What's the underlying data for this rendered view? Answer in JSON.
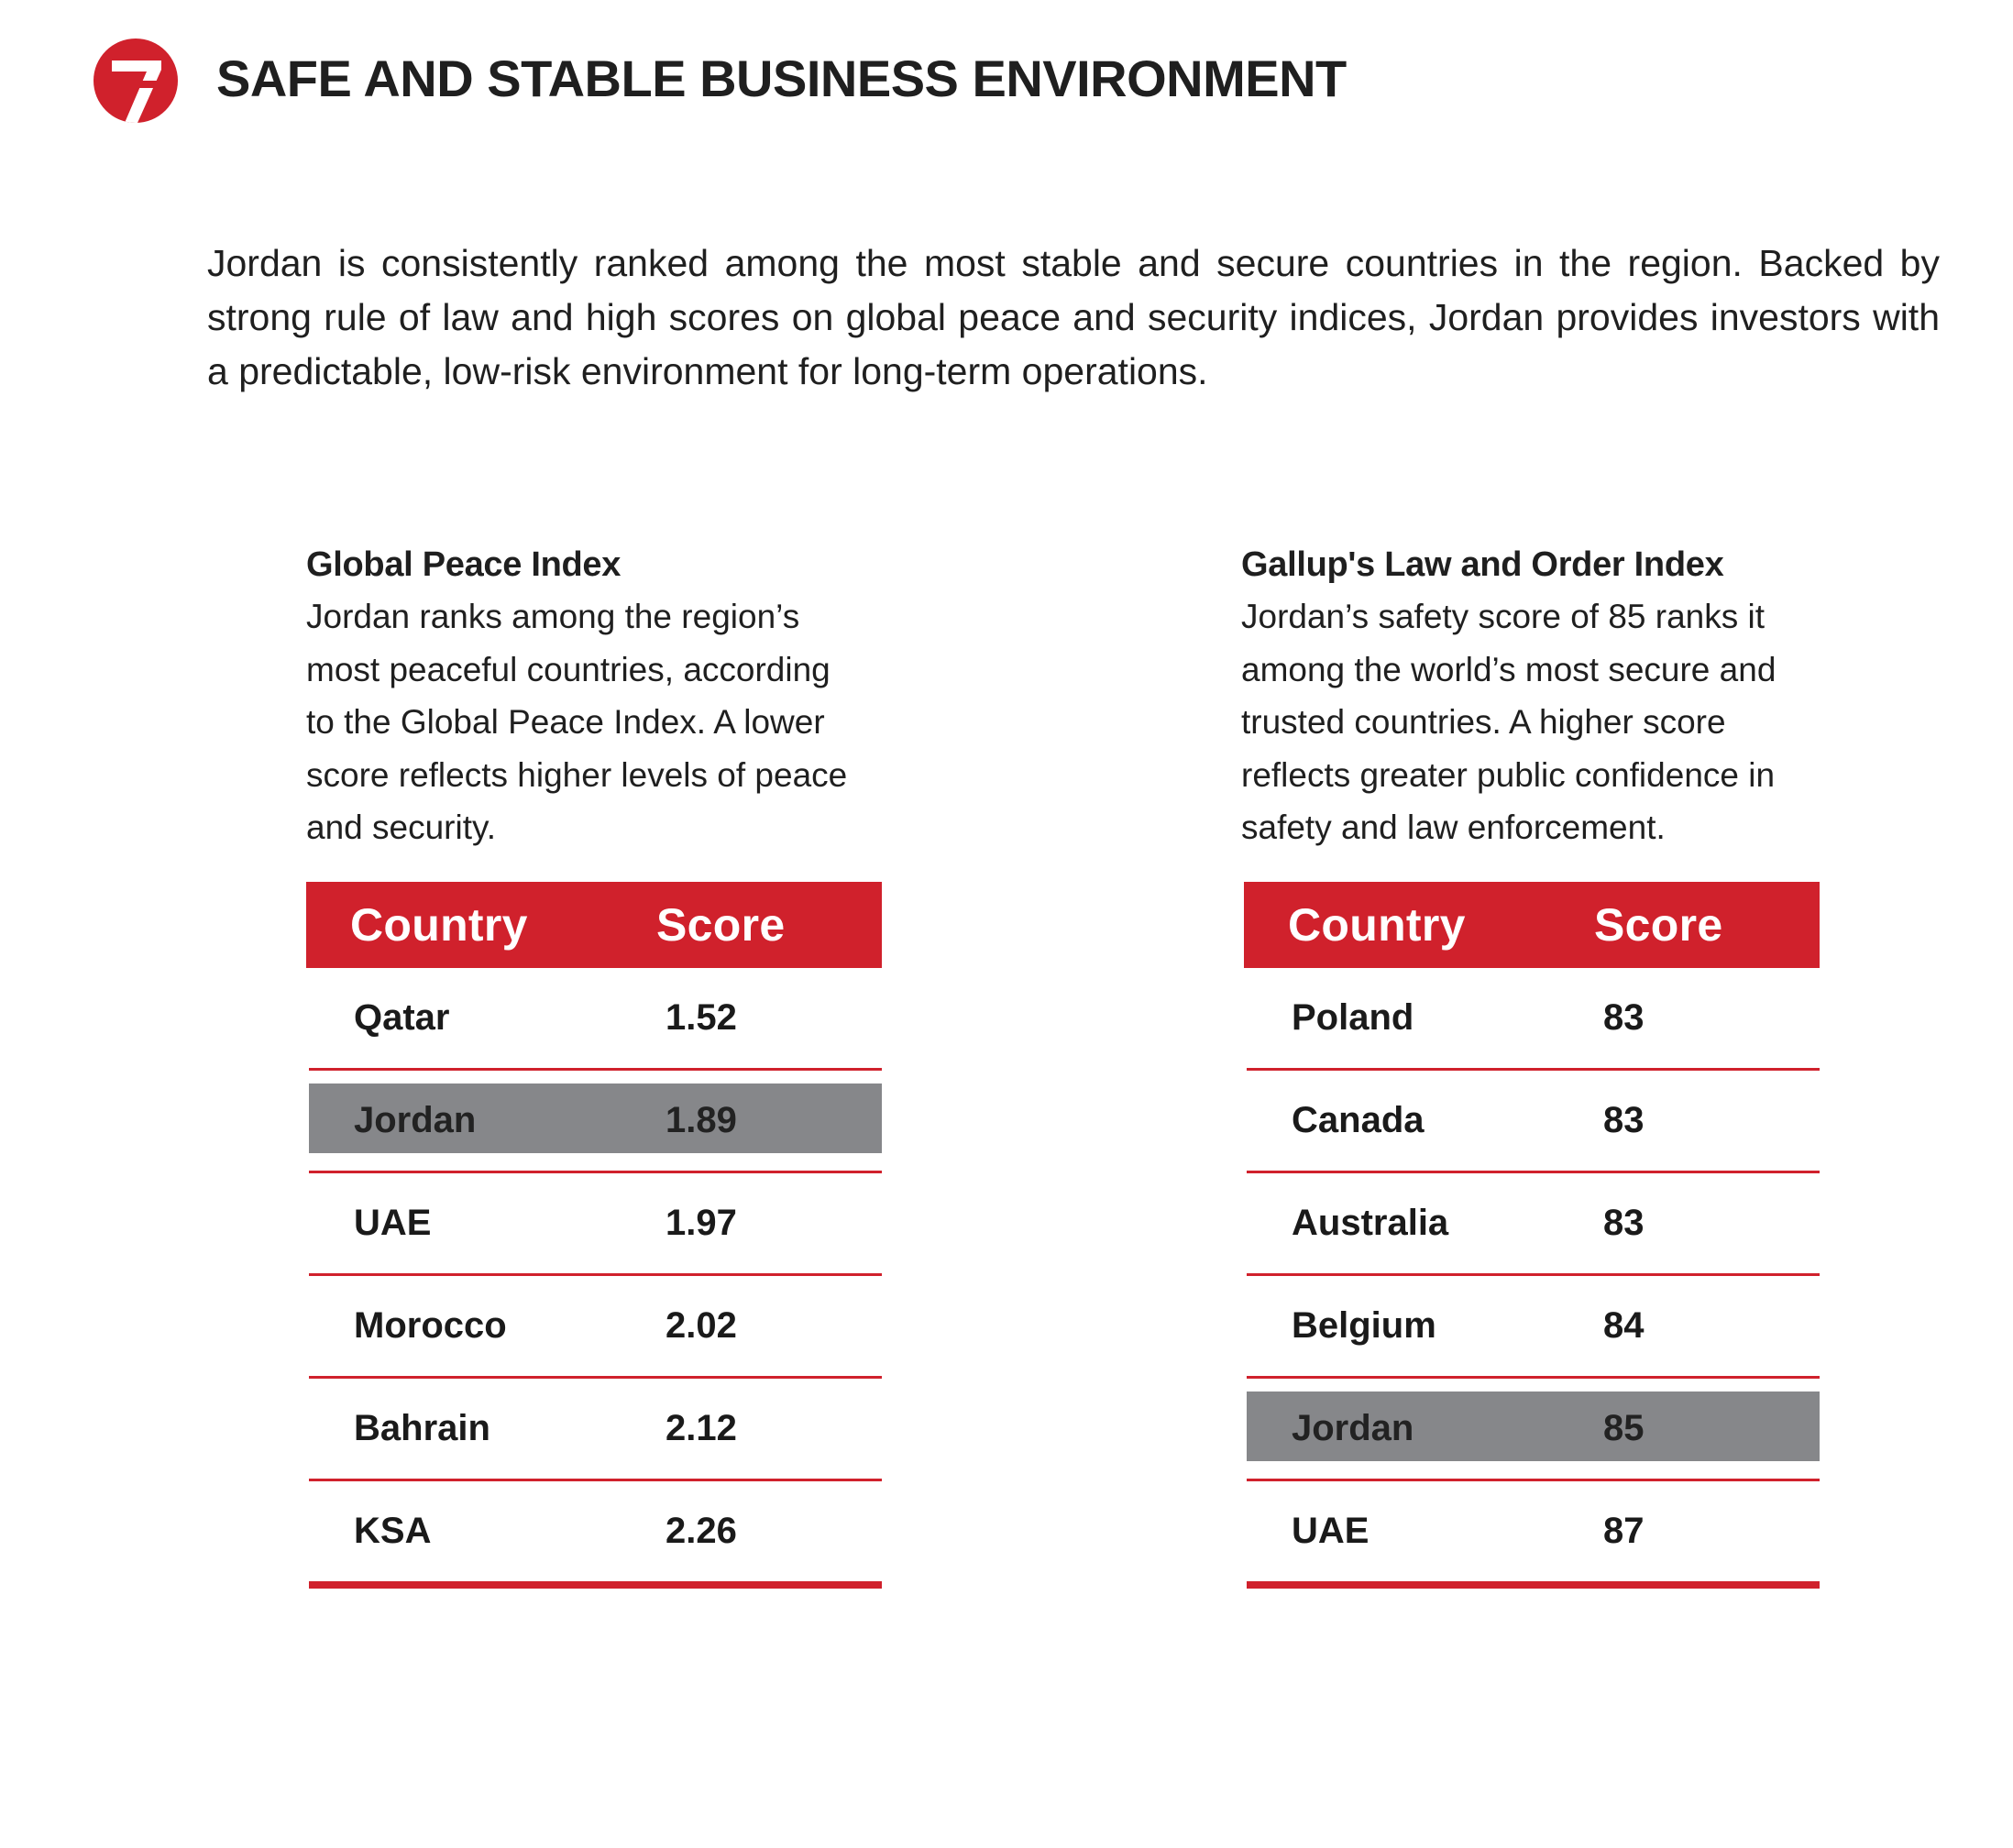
{
  "section": {
    "number": "7",
    "title": "SAFE AND STABLE BUSINESS ENVIRONMENT"
  },
  "intro": "Jordan is consistently ranked among the most stable and secure countries in the region. Backed by strong rule of law and high scores on global peace and security indices, Jordan provides investors with a predictable, low-risk environment for long-term operations.",
  "colors": {
    "accent": "#d0212c",
    "highlight_row": "#86878a",
    "text": "#1a1a1a"
  },
  "gpi": {
    "title": "Global Peace Index",
    "description": "Jordan ranks among the region’s\nmost peaceful countries, according\nto the Global Peace Index. A lower\nscore reflects higher levels of peace\nand security.",
    "header_country": "Country",
    "header_score": "Score",
    "rows": [
      {
        "country": "Qatar",
        "score": "1.52",
        "highlight": false
      },
      {
        "country": "Jordan",
        "score": "1.89",
        "highlight": true
      },
      {
        "country": "UAE",
        "score": "1.97",
        "highlight": false
      },
      {
        "country": "Morocco",
        "score": "2.02",
        "highlight": false
      },
      {
        "country": "Bahrain",
        "score": "2.12",
        "highlight": false
      },
      {
        "country": "KSA",
        "score": "2.26",
        "highlight": false
      }
    ]
  },
  "gallup": {
    "title": "Gallup's Law and Order Index",
    "description": "Jordan’s safety score of 85 ranks it\namong the world’s most secure and\ntrusted countries. A higher score\nreflects greater public confidence in\nsafety and law enforcement.",
    "header_country": "Country",
    "header_score": "Score",
    "rows": [
      {
        "country": "Poland",
        "score": "83",
        "highlight": false
      },
      {
        "country": "Canada",
        "score": "83",
        "highlight": false
      },
      {
        "country": "Australia",
        "score": "83",
        "highlight": false
      },
      {
        "country": "Belgium",
        "score": "84",
        "highlight": false
      },
      {
        "country": "Jordan",
        "score": "85",
        "highlight": true
      },
      {
        "country": "UAE",
        "score": "87",
        "highlight": false
      }
    ]
  }
}
